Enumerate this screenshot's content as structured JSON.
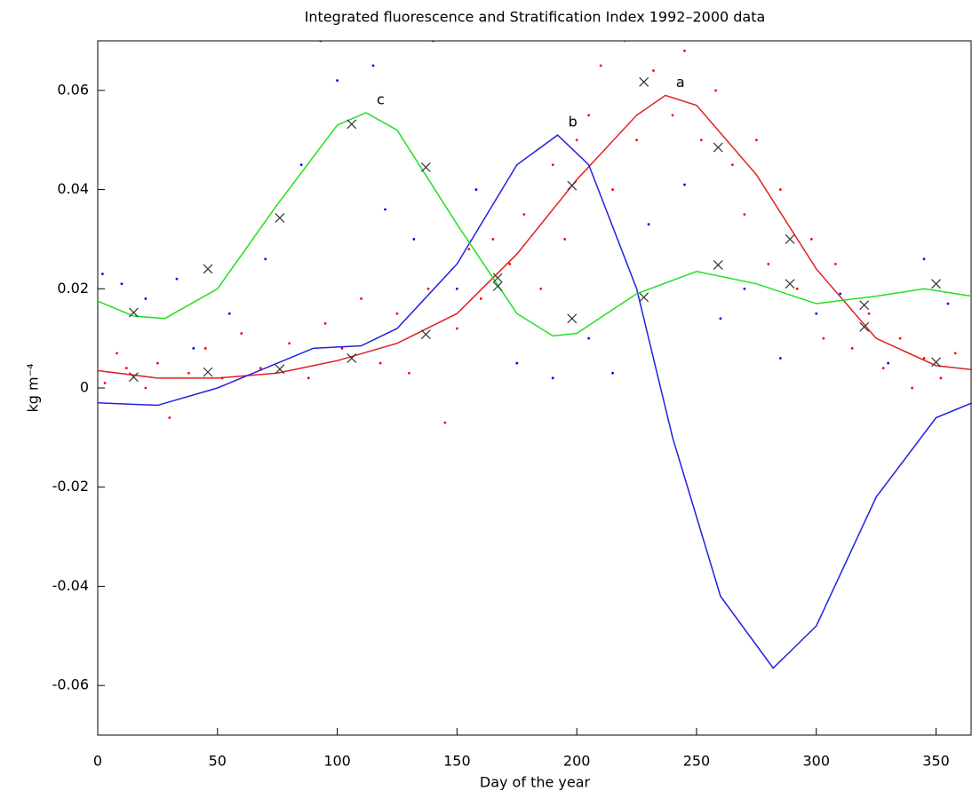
{
  "chart_data": {
    "type": "line",
    "title": "Integrated fluorescence and Stratification Index 1992–2000 data",
    "x_label": "Day of the year",
    "y_label": "kg m⁻⁴",
    "xlim": [
      0,
      365
    ],
    "ylim": [
      -0.07,
      0.07
    ],
    "xticks": [
      0,
      50,
      100,
      150,
      200,
      250,
      300,
      350
    ],
    "yticks": [
      -0.06,
      -0.04,
      -0.02,
      0,
      0.02,
      0.04,
      0.06
    ],
    "series": [
      {
        "color": "#ff0000",
        "marker": "dot",
        "x": [
          3,
          8,
          12,
          20,
          25,
          30,
          38,
          45,
          52,
          60,
          68,
          80,
          88,
          95,
          102,
          110,
          118,
          125,
          130,
          138,
          145,
          150,
          155,
          160,
          165,
          172,
          178,
          185,
          190,
          195,
          200,
          205,
          210,
          215,
          220,
          225,
          232,
          240,
          245,
          252,
          258,
          265,
          270,
          275,
          280,
          285,
          292,
          298,
          303,
          308,
          315,
          322,
          328,
          335,
          340,
          345,
          352,
          358
        ],
        "values": [
          0.001,
          0.007,
          0.004,
          0.0,
          0.005,
          -0.006,
          0.003,
          0.008,
          0.002,
          0.011,
          0.004,
          0.009,
          0.002,
          0.013,
          0.008,
          0.018,
          0.005,
          0.015,
          0.003,
          0.02,
          -0.007,
          0.012,
          0.028,
          0.018,
          0.03,
          0.025,
          0.035,
          0.02,
          0.045,
          0.03,
          0.05,
          0.055,
          0.065,
          0.04,
          0.07,
          0.05,
          0.064,
          0.055,
          0.068,
          0.05,
          0.06,
          0.045,
          0.035,
          0.05,
          0.025,
          0.04,
          0.02,
          0.03,
          0.01,
          0.025,
          0.008,
          0.015,
          0.004,
          0.01,
          0.0,
          0.006,
          0.002,
          0.007
        ]
      },
      {
        "color": "#0000ff",
        "marker": "dot",
        "x": [
          2,
          10,
          20,
          33,
          40,
          55,
          70,
          85,
          93,
          100,
          115,
          120,
          132,
          140,
          150,
          158,
          175,
          190,
          205,
          215,
          230,
          245,
          260,
          270,
          285,
          300,
          310,
          330,
          345,
          355
        ],
        "values": [
          0.023,
          0.021,
          0.018,
          0.022,
          0.008,
          0.015,
          0.026,
          0.045,
          0.07,
          0.062,
          0.065,
          0.036,
          0.03,
          0.07,
          0.02,
          0.04,
          0.005,
          0.002,
          0.01,
          0.003,
          0.033,
          0.041,
          0.014,
          0.02,
          0.006,
          0.015,
          0.019,
          0.005,
          0.026,
          0.017
        ]
      },
      {
        "name": "a",
        "color": "#e02020",
        "marker": "none",
        "x": [
          0,
          25,
          50,
          75,
          100,
          125,
          150,
          175,
          200,
          225,
          237,
          250,
          275,
          300,
          325,
          350,
          365
        ],
        "values": [
          0.0035,
          0.002,
          0.002,
          0.003,
          0.0055,
          0.009,
          0.015,
          0.027,
          0.042,
          0.055,
          0.059,
          0.057,
          0.043,
          0.024,
          0.01,
          0.0045,
          0.0037
        ]
      },
      {
        "name": "b",
        "color": "#2020e0",
        "marker": "none",
        "x": [
          0,
          25,
          50,
          75,
          90,
          110,
          125,
          150,
          175,
          192,
          205,
          225,
          240,
          260,
          282,
          300,
          325,
          350,
          365
        ],
        "values": [
          -0.003,
          -0.0035,
          0,
          0.005,
          0.008,
          0.0085,
          0.012,
          0.025,
          0.045,
          0.051,
          0.045,
          0.02,
          -0.01,
          -0.042,
          -0.0565,
          -0.048,
          -0.022,
          -0.006,
          -0.003
        ]
      },
      {
        "name": "c",
        "color": "#20e020",
        "marker": "none",
        "x": [
          0,
          15,
          28,
          50,
          75,
          100,
          112,
          125,
          150,
          175,
          190,
          200,
          225,
          250,
          275,
          300,
          325,
          345,
          365
        ],
        "values": [
          0.0175,
          0.0145,
          0.014,
          0.02,
          0.037,
          0.053,
          0.0555,
          0.052,
          0.033,
          0.015,
          0.0105,
          0.011,
          0.019,
          0.0235,
          0.021,
          0.017,
          0.0185,
          0.02,
          0.0185
        ]
      },
      {
        "color": "#333333",
        "marker": "cross",
        "x": [
          15,
          15,
          46,
          46,
          76,
          76,
          106,
          106,
          137,
          137,
          167,
          167,
          198,
          198,
          228,
          228,
          259,
          259,
          289,
          289,
          320,
          320,
          350,
          350
        ],
        "values": [
          0.0152,
          0.0022,
          0.024,
          0.0032,
          0.0343,
          0.0038,
          0.0532,
          0.006,
          0.0445,
          0.0108,
          0.0222,
          0.0205,
          0.0408,
          0.014,
          0.0617,
          0.0183,
          0.0485,
          0.0248,
          0.03,
          0.021,
          0.0167,
          0.0123,
          0.021,
          0.0052
        ]
      }
    ]
  }
}
